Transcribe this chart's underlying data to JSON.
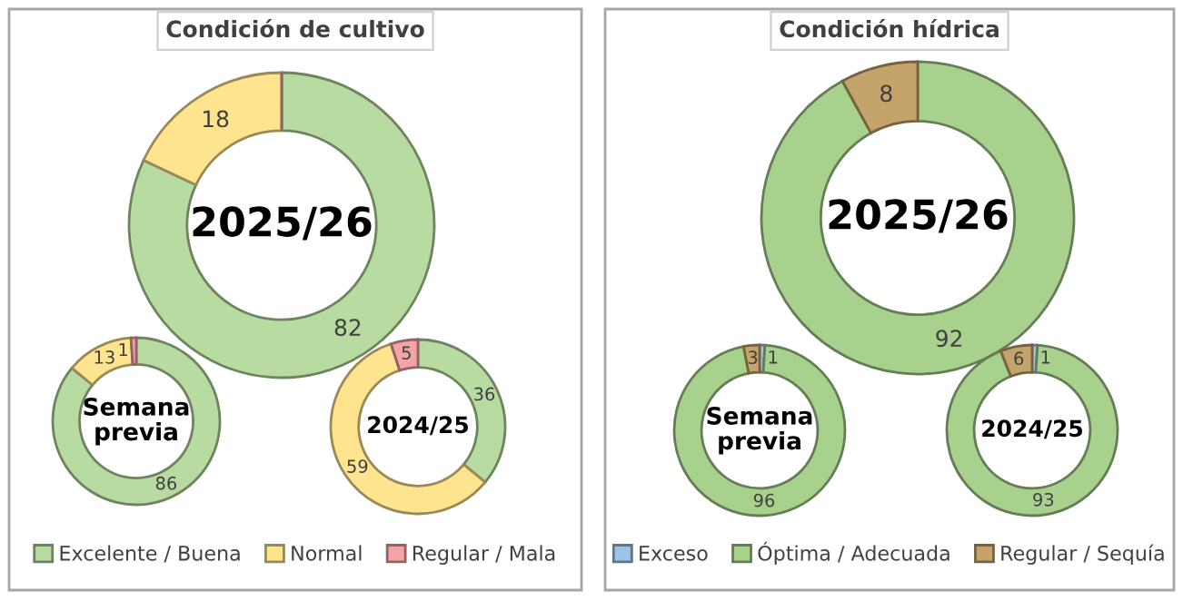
{
  "chart_data": [
    {
      "type": "donut",
      "title": "Condición de cultivo",
      "annotations": [
        "2025/26"
      ],
      "categories": [
        "Excelente / Buena",
        "Normal",
        "Regular / Mala"
      ],
      "values": [
        82,
        18,
        0
      ],
      "colors": [
        "#b7dba0",
        "#ffe48f",
        "#f4a3a8"
      ],
      "value_labels": [
        "82",
        "18",
        null
      ],
      "legend": "bottom"
    },
    {
      "type": "donut",
      "annotations": [
        "Semana\nprevia"
      ],
      "values": [
        86,
        13,
        1
      ],
      "colors": [
        "#b7dba0",
        "#ffe48f",
        "#f4a3a8"
      ],
      "value_labels": [
        "86",
        "13",
        "1"
      ]
    },
    {
      "type": "donut",
      "annotations": [
        "2024/25"
      ],
      "values": [
        36,
        59,
        5
      ],
      "colors": [
        "#b7dba0",
        "#ffe48f",
        "#f4a3a8"
      ],
      "value_labels": [
        "36",
        "59",
        "5"
      ]
    },
    {
      "type": "donut",
      "title": "Condición hídrica",
      "annotations": [
        "2025/26"
      ],
      "categories": [
        "Exceso",
        "Óptima / Adecuada",
        "Regular / Sequía"
      ],
      "values": [
        0,
        92,
        8
      ],
      "colors": [
        "#9dc3e6",
        "#a9d18e",
        "#c4a46b"
      ],
      "value_labels": [
        null,
        "92",
        "8"
      ],
      "legend": "bottom"
    },
    {
      "type": "donut",
      "annotations": [
        "Semana\nprevia"
      ],
      "values": [
        1,
        96,
        3
      ],
      "colors": [
        "#9dc3e6",
        "#a9d18e",
        "#c4a46b"
      ],
      "value_labels": [
        "1",
        "96",
        "3"
      ]
    },
    {
      "type": "donut",
      "annotations": [
        "2024/25"
      ],
      "values": [
        1,
        93,
        6
      ],
      "colors": [
        "#9dc3e6",
        "#a9d18e",
        "#c4a46b"
      ],
      "value_labels": [
        "1",
        "93",
        "6"
      ]
    }
  ]
}
